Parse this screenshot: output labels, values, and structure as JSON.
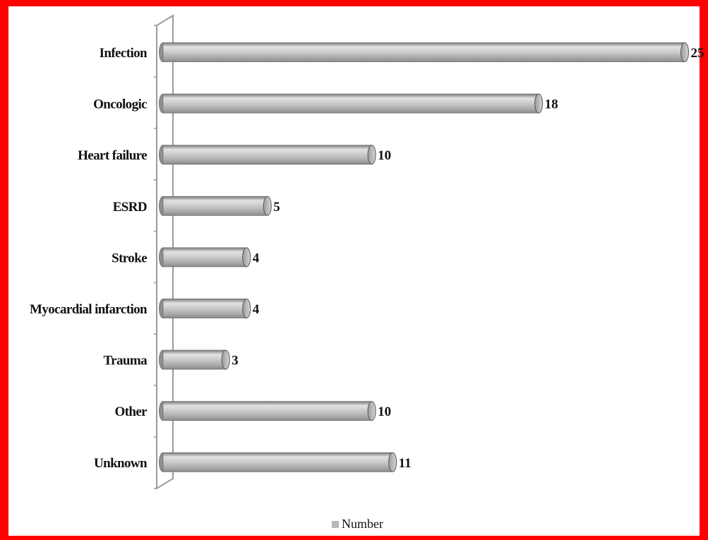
{
  "chart_data": {
    "type": "bar",
    "orientation": "horizontal",
    "categories": [
      "Infection",
      "Oncologic",
      "Heart failure",
      "ESRD",
      "Stroke",
      "Myocardial infarction",
      "Trauma",
      "Other",
      "Unknown"
    ],
    "series": [
      {
        "name": "Number",
        "values": [
          25,
          18,
          10,
          5,
          4,
          4,
          3,
          10,
          11
        ],
        "color": "#b8b8b8"
      }
    ],
    "title": "",
    "xlabel": "",
    "ylabel": "",
    "xlim": [
      0,
      25
    ],
    "grid": false,
    "data_labels": true,
    "legend_position": "bottom",
    "style": "3d-cylinder"
  },
  "colors": {
    "frame": "#ff0000",
    "bar": "#b8b8b8",
    "axis_wall": "#9a9a9a",
    "text": "#111111"
  }
}
